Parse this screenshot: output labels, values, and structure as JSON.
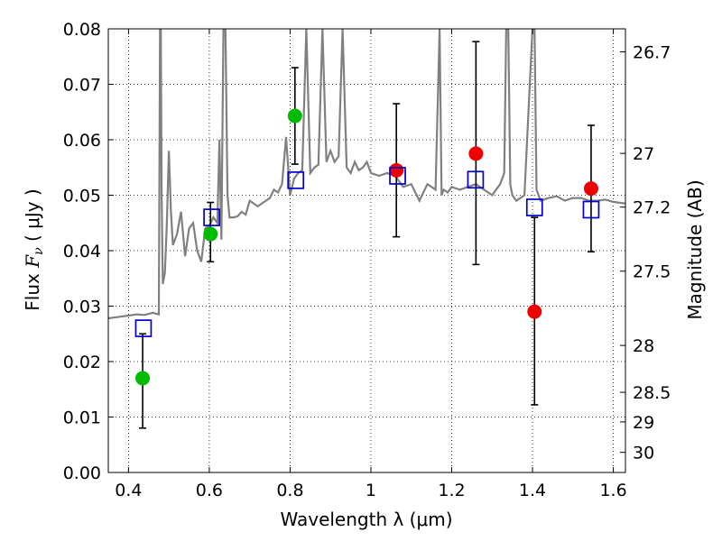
{
  "chart_data": {
    "type": "scatter",
    "xlabel": "Wavelength  λ (μm)",
    "ylabel": {
      "prefix": "Flux ",
      "symbol": "F",
      "subscript": "ν",
      "unit": "  ( μJy )"
    },
    "y2label": "Magnitude (AB)",
    "xlim": [
      0.35,
      1.63
    ],
    "ylim": [
      0,
      0.08
    ],
    "x_ticks": [
      0.4,
      0.6,
      0.8,
      1.0,
      1.2,
      1.4,
      1.6
    ],
    "x_tick_labels": [
      "0.4",
      "0.6",
      "0.8",
      "1",
      "1.2",
      "1.4",
      "1.6"
    ],
    "y_ticks": [
      0,
      0.01,
      0.02,
      0.03,
      0.04,
      0.05,
      0.06,
      0.07,
      0.08
    ],
    "y_tick_labels": [
      "0.00",
      "0.01",
      "0.02",
      "0.03",
      "0.04",
      "0.05",
      "0.06",
      "0.07",
      "0.08"
    ],
    "y2_ticks": [
      {
        "label": "26.7",
        "mag": 26.7
      },
      {
        "label": "27",
        "mag": 27.0
      },
      {
        "label": "27.2",
        "mag": 27.2
      },
      {
        "label": "27.5",
        "mag": 27.5
      },
      {
        "label": "28",
        "mag": 28.0
      },
      {
        "label": "28.5",
        "mag": 28.5
      },
      {
        "label": "29",
        "mag": 29.0
      },
      {
        "label": "30",
        "mag": 30.0
      }
    ],
    "grid": true,
    "colors": {
      "spectrum": "#808080",
      "green": "#00bb00",
      "red": "#ee0000",
      "model": "#0000cc",
      "errorbar": "#000000"
    },
    "spectrum": {
      "x": [
        0.35,
        0.37,
        0.4,
        0.42,
        0.44,
        0.46,
        0.475,
        0.478,
        0.48,
        0.482,
        0.485,
        0.49,
        0.495,
        0.5,
        0.505,
        0.51,
        0.52,
        0.53,
        0.54,
        0.55,
        0.56,
        0.57,
        0.58,
        0.59,
        0.6,
        0.61,
        0.62,
        0.625,
        0.63,
        0.635,
        0.64,
        0.645,
        0.65,
        0.655,
        0.66,
        0.67,
        0.68,
        0.69,
        0.7,
        0.72,
        0.74,
        0.75,
        0.76,
        0.77,
        0.78,
        0.79,
        0.8,
        0.81,
        0.82,
        0.83,
        0.84,
        0.85,
        0.86,
        0.87,
        0.88,
        0.89,
        0.9,
        0.91,
        0.92,
        0.93,
        0.94,
        0.95,
        0.96,
        0.97,
        0.98,
        0.99,
        1.0,
        1.02,
        1.04,
        1.06,
        1.08,
        1.1,
        1.12,
        1.14,
        1.16,
        1.17,
        1.175,
        1.18,
        1.19,
        1.2,
        1.22,
        1.24,
        1.26,
        1.28,
        1.3,
        1.32,
        1.33,
        1.335,
        1.34,
        1.345,
        1.35,
        1.36,
        1.38,
        1.4,
        1.405,
        1.41,
        1.42,
        1.44,
        1.46,
        1.48,
        1.5,
        1.52,
        1.54,
        1.56,
        1.58,
        1.6,
        1.63
      ],
      "y": [
        0.0278,
        0.028,
        0.0283,
        0.0285,
        0.0284,
        0.0288,
        0.0285,
        0.08,
        0.08,
        0.05,
        0.034,
        0.036,
        0.045,
        0.058,
        0.047,
        0.041,
        0.043,
        0.047,
        0.039,
        0.044,
        0.045,
        0.04,
        0.038,
        0.044,
        0.0445,
        0.046,
        0.045,
        0.06,
        0.042,
        0.08,
        0.08,
        0.05,
        0.046,
        0.046,
        0.046,
        0.0462,
        0.047,
        0.0465,
        0.049,
        0.048,
        0.049,
        0.0495,
        0.051,
        0.0505,
        0.052,
        0.0605,
        0.05,
        0.053,
        0.054,
        0.0545,
        0.08,
        0.054,
        0.055,
        0.0555,
        0.08,
        0.056,
        0.058,
        0.056,
        0.057,
        0.08,
        0.055,
        0.054,
        0.056,
        0.0545,
        0.055,
        0.056,
        0.054,
        0.0535,
        0.054,
        0.0535,
        0.0515,
        0.052,
        0.049,
        0.052,
        0.051,
        0.08,
        0.05,
        0.051,
        0.0505,
        0.0515,
        0.051,
        0.0515,
        0.052,
        0.051,
        0.05,
        0.052,
        0.054,
        0.08,
        0.08,
        0.052,
        0.05,
        0.049,
        0.05,
        0.08,
        0.08,
        0.051,
        0.049,
        0.0495,
        0.0498,
        0.049,
        0.0495,
        0.0495,
        0.049,
        0.049,
        0.0492,
        0.0488,
        0.0485
      ]
    },
    "series": [
      {
        "marker": "circle",
        "color": "green",
        "points": [
          {
            "x": 0.435,
            "y": 0.017,
            "err_lo": 0.008,
            "err_hi": 0.025
          },
          {
            "x": 0.603,
            "y": 0.043,
            "err_lo": 0.038,
            "err_hi": 0.0487
          },
          {
            "x": 0.812,
            "y": 0.0643,
            "err_lo": 0.0556,
            "err_hi": 0.073
          }
        ]
      },
      {
        "marker": "circle",
        "color": "red",
        "points": [
          {
            "x": 1.063,
            "y": 0.0545,
            "err_lo": 0.0425,
            "err_hi": 0.0665
          },
          {
            "x": 1.26,
            "y": 0.0575,
            "err_lo": 0.0375,
            "err_hi": 0.0777
          },
          {
            "x": 1.405,
            "y": 0.029,
            "err_lo": 0.0122,
            "err_hi": 0.046
          },
          {
            "x": 1.545,
            "y": 0.0512,
            "err_lo": 0.0398,
            "err_hi": 0.0626
          }
        ]
      },
      {
        "marker": "square",
        "color": "model",
        "points": [
          {
            "x": 0.437,
            "y": 0.026
          },
          {
            "x": 0.606,
            "y": 0.046
          },
          {
            "x": 0.814,
            "y": 0.0527
          },
          {
            "x": 1.066,
            "y": 0.0535
          },
          {
            "x": 1.259,
            "y": 0.0528
          },
          {
            "x": 1.405,
            "y": 0.0478
          },
          {
            "x": 1.545,
            "y": 0.0474
          }
        ]
      }
    ]
  }
}
